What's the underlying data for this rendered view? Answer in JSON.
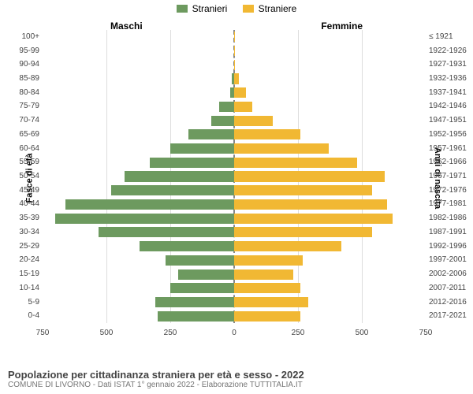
{
  "legend": {
    "male": {
      "label": "Stranieri",
      "color": "#6d9a5f"
    },
    "female": {
      "label": "Straniere",
      "color": "#f1b833"
    }
  },
  "side_headers": {
    "male": "Maschi",
    "female": "Femmine"
  },
  "axis_titles": {
    "left": "Fasce di età",
    "right": "Anni di nascita"
  },
  "footer": {
    "title": "Popolazione per cittadinanza straniera per età e sesso - 2022",
    "subtitle": "COMUNE DI LIVORNO - Dati ISTAT 1° gennaio 2022 - Elaborazione TUTTITALIA.IT"
  },
  "chart": {
    "type": "population-pyramid",
    "x_max": 750,
    "x_ticks_left": [
      750,
      500,
      250,
      0
    ],
    "x_ticks_right": [
      0,
      250,
      500,
      750
    ],
    "grid_color": "#dddddd",
    "center_dash_color": "#888888",
    "background_color": "#ffffff",
    "label_fontsize": 10,
    "rows": [
      {
        "age": "100+",
        "birth": "≤ 1921",
        "male": 0,
        "female": 1
      },
      {
        "age": "95-99",
        "birth": "1922-1926",
        "male": 0,
        "female": 1
      },
      {
        "age": "90-94",
        "birth": "1927-1931",
        "male": 0,
        "female": 2
      },
      {
        "age": "85-89",
        "birth": "1932-1936",
        "male": 10,
        "female": 18
      },
      {
        "age": "80-84",
        "birth": "1937-1941",
        "male": 15,
        "female": 45
      },
      {
        "age": "75-79",
        "birth": "1942-1946",
        "male": 60,
        "female": 70
      },
      {
        "age": "70-74",
        "birth": "1947-1951",
        "male": 90,
        "female": 150
      },
      {
        "age": "65-69",
        "birth": "1952-1956",
        "male": 180,
        "female": 260
      },
      {
        "age": "60-64",
        "birth": "1957-1961",
        "male": 250,
        "female": 370
      },
      {
        "age": "55-59",
        "birth": "1962-1966",
        "male": 330,
        "female": 480
      },
      {
        "age": "50-54",
        "birth": "1967-1971",
        "male": 430,
        "female": 590
      },
      {
        "age": "45-49",
        "birth": "1972-1976",
        "male": 480,
        "female": 540
      },
      {
        "age": "40-44",
        "birth": "1977-1981",
        "male": 660,
        "female": 600
      },
      {
        "age": "35-39",
        "birth": "1982-1986",
        "male": 700,
        "female": 620
      },
      {
        "age": "30-34",
        "birth": "1987-1991",
        "male": 530,
        "female": 540
      },
      {
        "age": "25-29",
        "birth": "1992-1996",
        "male": 370,
        "female": 420
      },
      {
        "age": "20-24",
        "birth": "1997-2001",
        "male": 270,
        "female": 270
      },
      {
        "age": "15-19",
        "birth": "2002-2006",
        "male": 220,
        "female": 230
      },
      {
        "age": "10-14",
        "birth": "2007-2011",
        "male": 250,
        "female": 260
      },
      {
        "age": "5-9",
        "birth": "2012-2016",
        "male": 310,
        "female": 290
      },
      {
        "age": "0-4",
        "birth": "2017-2021",
        "male": 300,
        "female": 260
      }
    ]
  }
}
